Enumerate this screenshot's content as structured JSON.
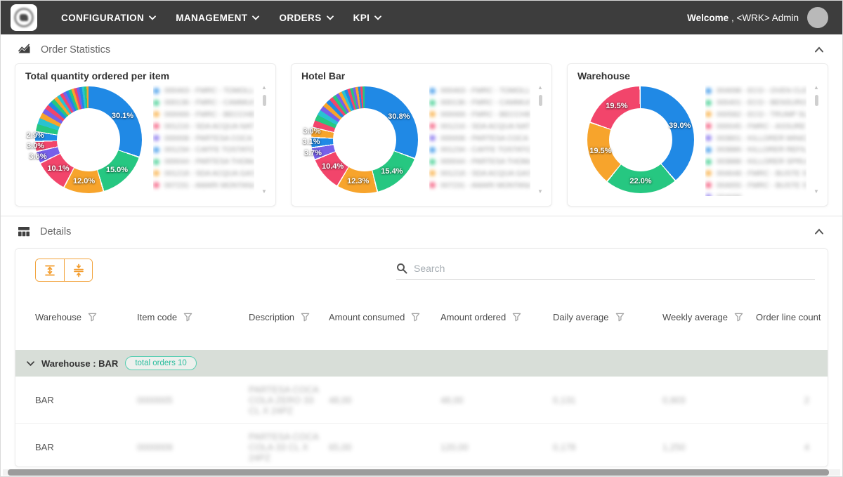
{
  "navbar": {
    "menus": [
      {
        "label": "CONFIGURATION"
      },
      {
        "label": "MANAGEMENT"
      },
      {
        "label": "ORDERS"
      },
      {
        "label": "KPI"
      }
    ],
    "welcome_bold": "Welcome",
    "welcome_rest": " , <WRK> Admin"
  },
  "colors": {
    "blue": "#2089e5",
    "green": "#26c781",
    "orange": "#f7a42c",
    "red": "#f2456b",
    "purple": "#7660ea",
    "teal": "#29c2d1",
    "navbar_bg": "#3d3d3d",
    "group_row_bg": "#d8ded8",
    "badge_teal": "#2bbd9e",
    "toolbar_orange": "#f2a33c"
  },
  "sections": {
    "order_statistics_title": "Order Statistics",
    "details_title": "Details"
  },
  "chart_data": [
    {
      "type": "pie",
      "title": "Total quantity ordered per item",
      "labeled_values": [
        30.1,
        15.0,
        12.0,
        10.1,
        3.6,
        3.0,
        2.9
      ],
      "slices": [
        {
          "value": 30.1,
          "label": "30.1%",
          "color": "#2089e5"
        },
        {
          "value": 15.0,
          "label": "15.0%",
          "color": "#26c781"
        },
        {
          "value": 12.0,
          "label": "12.0%",
          "color": "#f7a42c"
        },
        {
          "value": 10.1,
          "label": "10.1%",
          "color": "#f2456b"
        },
        {
          "value": 3.6,
          "label": "3.6%",
          "color": "#7660ea"
        },
        {
          "value": 3.0,
          "label": "3.0%",
          "color": "#f2456b"
        },
        {
          "value": 2.9,
          "label": "2.9%",
          "color": "#2089e5"
        },
        {
          "value": 2.1,
          "color": "#26c781"
        },
        {
          "value": 1.9,
          "color": "#29c2d1"
        },
        {
          "value": 1.7,
          "color": "#f7a42c"
        },
        {
          "value": 1.5,
          "color": "#7660ea"
        },
        {
          "value": 1.4,
          "color": "#f2456b"
        },
        {
          "value": 1.3,
          "color": "#2089e5"
        },
        {
          "value": 1.2,
          "color": "#26c781"
        },
        {
          "value": 1.1,
          "color": "#f7a42c"
        },
        {
          "value": 1.0,
          "color": "#29c2d1"
        },
        {
          "value": 1.0,
          "color": "#f2456b"
        },
        {
          "value": 0.9,
          "color": "#7660ea"
        },
        {
          "value": 0.9,
          "color": "#2089e5"
        },
        {
          "value": 0.9,
          "color": "#26c781"
        },
        {
          "value": 0.8,
          "color": "#f7a42c"
        },
        {
          "value": 0.8,
          "color": "#f2456b"
        },
        {
          "value": 0.8,
          "color": "#7660ea"
        },
        {
          "value": 0.8,
          "color": "#2089e5"
        },
        {
          "value": 0.7,
          "color": "#29c2d1"
        },
        {
          "value": 0.7,
          "color": "#26c781"
        },
        {
          "value": 0.6,
          "color": "#f7a42c"
        }
      ],
      "legend": [
        {
          "color": "#2089e5",
          "text": "000463 - FMRC - TOMOLLO"
        },
        {
          "color": "#26c781",
          "text": "000136 - FMRC - CAMMUCCI"
        },
        {
          "color": "#f7a42c",
          "text": "000069 - FMRC - BECCHIER"
        },
        {
          "color": "#f2456b",
          "text": "001216 - SDA ACQUA NATUR"
        },
        {
          "color": "#7660ea",
          "text": "000008 - PARTESA COCA CO"
        },
        {
          "color": "#2089e5",
          "text": "001234 - CAFFE TOSTATO C"
        },
        {
          "color": "#26c781",
          "text": "000044 - PARTESA THOMAS"
        },
        {
          "color": "#f7a42c",
          "text": "001218 - SDA ACQUA GAS T"
        },
        {
          "color": "#f2456b",
          "text": "007231 - AMARI MONTANA A"
        }
      ],
      "legend_blurred": true
    },
    {
      "type": "pie",
      "title": "Hotel Bar",
      "labeled_values": [
        30.8,
        15.4,
        12.3,
        10.4,
        3.7,
        3.1,
        3.0
      ],
      "slices": [
        {
          "value": 30.8,
          "label": "30.8%",
          "color": "#2089e5"
        },
        {
          "value": 15.4,
          "label": "15.4%",
          "color": "#26c781"
        },
        {
          "value": 12.3,
          "label": "12.3%",
          "color": "#f7a42c"
        },
        {
          "value": 10.4,
          "label": "10.4%",
          "color": "#f2456b"
        },
        {
          "value": 3.7,
          "label": "3.7%",
          "color": "#7660ea"
        },
        {
          "value": 3.1,
          "label": "3.1%",
          "color": "#2089e5"
        },
        {
          "value": 3.0,
          "label": "3.0%",
          "color": "#f7a42c"
        },
        {
          "value": 2.0,
          "color": "#f2456b"
        },
        {
          "value": 1.8,
          "color": "#26c781"
        },
        {
          "value": 1.6,
          "color": "#29c2d1"
        },
        {
          "value": 1.5,
          "color": "#7660ea"
        },
        {
          "value": 1.4,
          "color": "#f7a42c"
        },
        {
          "value": 1.3,
          "color": "#2089e5"
        },
        {
          "value": 1.2,
          "color": "#f2456b"
        },
        {
          "value": 1.1,
          "color": "#26c781"
        },
        {
          "value": 1.0,
          "color": "#7660ea"
        },
        {
          "value": 1.0,
          "color": "#f7a42c"
        },
        {
          "value": 0.9,
          "color": "#29c2d1"
        },
        {
          "value": 0.9,
          "color": "#2089e5"
        },
        {
          "value": 0.9,
          "color": "#f2456b"
        },
        {
          "value": 0.8,
          "color": "#26c781"
        },
        {
          "value": 0.8,
          "color": "#7660ea"
        },
        {
          "value": 0.8,
          "color": "#f7a42c"
        },
        {
          "value": 0.7,
          "color": "#2089e5"
        },
        {
          "value": 0.7,
          "color": "#f2456b"
        },
        {
          "value": 0.6,
          "color": "#26c781"
        }
      ],
      "legend": [
        {
          "color": "#2089e5",
          "text": "000463 - FMRC - TOMOLLO"
        },
        {
          "color": "#26c781",
          "text": "000136 - FMRC - CAMMUCCI"
        },
        {
          "color": "#f7a42c",
          "text": "000069 - FMRC - BECCHIER"
        },
        {
          "color": "#f2456b",
          "text": "001216 - SDA ACQUA NATUR"
        },
        {
          "color": "#7660ea",
          "text": "000008 - PARTESA COCA CO"
        },
        {
          "color": "#2089e5",
          "text": "001234 - CAFFE TOSTATO C"
        },
        {
          "color": "#26c781",
          "text": "000044 - PARTESA THOMAS"
        },
        {
          "color": "#f7a42c",
          "text": "001218 - SDA ACQUA GAS T"
        },
        {
          "color": "#f2456b",
          "text": "007231 - AMARI MONTANA A"
        }
      ],
      "legend_blurred": true
    },
    {
      "type": "pie",
      "title": "Warehouse",
      "labeled_values": [
        39.0,
        22.0,
        19.5,
        19.5
      ],
      "slices": [
        {
          "value": 39.0,
          "label": "39.0%",
          "color": "#2089e5"
        },
        {
          "value": 22.0,
          "label": "22.0%",
          "color": "#26c781"
        },
        {
          "value": 19.5,
          "label": "19.5%",
          "color": "#f7a42c"
        },
        {
          "value": 19.5,
          "label": "19.5%",
          "color": "#f2456b"
        }
      ],
      "legend": [
        {
          "color": "#2089e5",
          "text": "004698 - ECO - OVEN CLEA"
        },
        {
          "color": "#26c781",
          "text": "000401 - ECO - BENSUROL"
        },
        {
          "color": "#f7a42c",
          "text": "000582 - ECO - TRUMP SL"
        },
        {
          "color": "#f2456b",
          "text": "000045 - FMRC - ASSURE L"
        },
        {
          "color": "#7660ea",
          "text": "003801 - KILLORER MINIO"
        },
        {
          "color": "#2089e5",
          "text": "003886 - KILLORER REFIL"
        },
        {
          "color": "#26c781",
          "text": "003888 - KILLORER SPRUZ"
        },
        {
          "color": "#f7a42c",
          "text": "004648 - FMRC - BUSTE SC"
        },
        {
          "color": "#f2456b",
          "text": "004655 - FMRC - BUSTE SC"
        },
        {
          "color": "#7660ea",
          "text": "004699"
        }
      ],
      "legend_blurred": true
    }
  ],
  "details_table": {
    "search_placeholder": "Search",
    "columns": [
      {
        "label": "Warehouse",
        "filter": true
      },
      {
        "label": "Item code",
        "filter": true
      },
      {
        "label": "Description",
        "filter": true
      },
      {
        "label": "Amount consumed",
        "filter": true
      },
      {
        "label": "Amount ordered",
        "filter": true
      },
      {
        "label": "Daily average",
        "filter": true
      },
      {
        "label": "Weekly average",
        "filter": true
      },
      {
        "label": "Order line count",
        "filter": false
      }
    ],
    "group": {
      "label": "Warehouse : BAR",
      "badge": "total orders 10"
    },
    "rows": [
      {
        "cells": [
          "BAR",
          "0000005",
          "PARTESA COCA COLA ZERO 33 CL X 24PZ",
          "48,00",
          "48,00",
          "0,131",
          "0,903",
          "2"
        ],
        "blurred_cols": [
          1,
          2,
          3,
          4,
          5,
          6,
          7
        ]
      },
      {
        "cells": [
          "BAR",
          "0000009",
          "PARTESA COCA COLA 33 CL X 24PZ",
          "65,00",
          "120,00",
          "0,178",
          "1,250",
          "4"
        ],
        "blurred_cols": [
          1,
          2,
          3,
          4,
          5,
          6,
          7
        ]
      }
    ]
  }
}
